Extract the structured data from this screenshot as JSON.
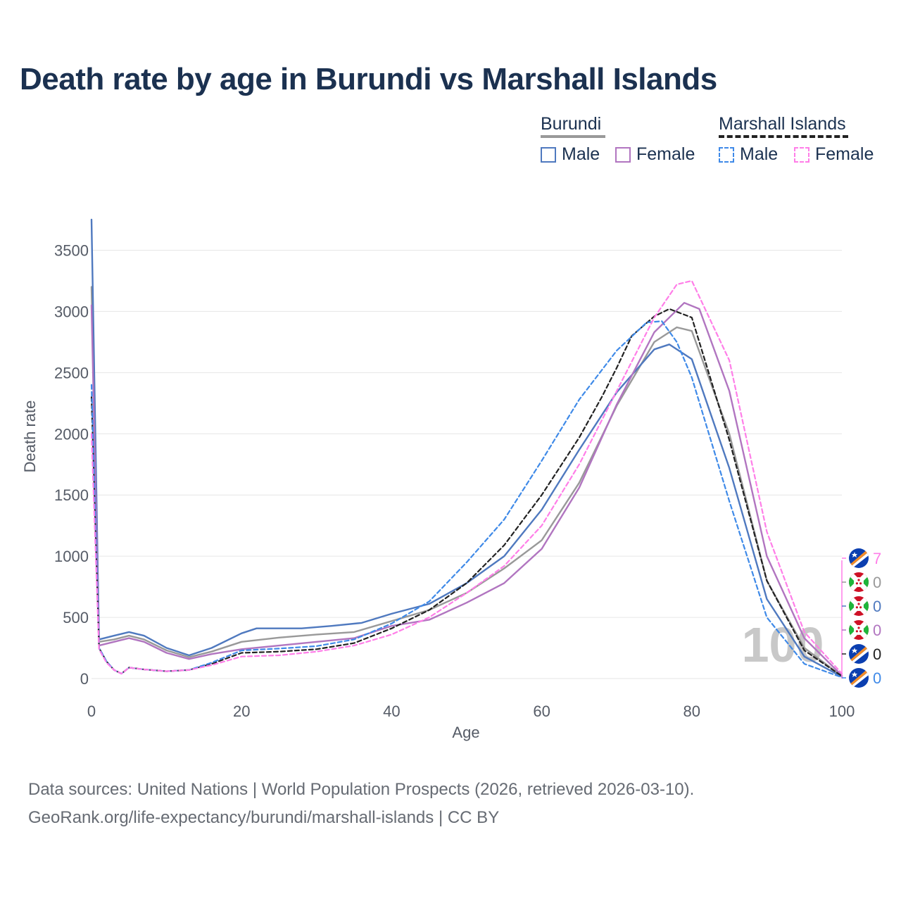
{
  "title": "Death rate by age in Burundi vs Marshall Islands",
  "legend": {
    "groups": [
      {
        "name": "Burundi",
        "line_color": "#999999",
        "dashed": false,
        "items": [
          {
            "label": "Male",
            "color": "#4f79bf"
          },
          {
            "label": "Female",
            "color": "#b175c0"
          }
        ]
      },
      {
        "name": "Marshall Islands",
        "line_color": "#222222",
        "dashed": true,
        "items": [
          {
            "label": "Male",
            "color": "#3f8ae8"
          },
          {
            "label": "Female",
            "color": "#ff7ee8"
          }
        ]
      }
    ]
  },
  "chart_data": {
    "type": "line",
    "title": "Death rate by age in Burundi vs Marshall Islands",
    "xlabel": "Age",
    "ylabel": "Death rate",
    "xlim": [
      0,
      100
    ],
    "ylim": [
      0,
      3750
    ],
    "xticks": [
      0,
      20,
      40,
      60,
      80,
      100
    ],
    "yticks": [
      0,
      500,
      1000,
      1500,
      2000,
      2500,
      3000,
      3500
    ],
    "grid": true,
    "age_marker": "100",
    "series": [
      {
        "name": "Burundi (total)",
        "color": "#999999",
        "dashed": false,
        "end_value": "0",
        "points": [
          [
            0,
            3200
          ],
          [
            1,
            300
          ],
          [
            3,
            320
          ],
          [
            5,
            350
          ],
          [
            7,
            320
          ],
          [
            10,
            230
          ],
          [
            13,
            175
          ],
          [
            16,
            220
          ],
          [
            20,
            300
          ],
          [
            25,
            335
          ],
          [
            30,
            360
          ],
          [
            35,
            380
          ],
          [
            40,
            470
          ],
          [
            45,
            560
          ],
          [
            50,
            700
          ],
          [
            55,
            900
          ],
          [
            60,
            1130
          ],
          [
            65,
            1600
          ],
          [
            70,
            2230
          ],
          [
            75,
            2750
          ],
          [
            78,
            2870
          ],
          [
            80,
            2840
          ],
          [
            85,
            2000
          ],
          [
            90,
            800
          ],
          [
            95,
            250
          ],
          [
            100,
            20
          ]
        ]
      },
      {
        "name": "Burundi Male",
        "color": "#4f79bf",
        "dashed": false,
        "end_value": "0",
        "points": [
          [
            0,
            3750
          ],
          [
            1,
            320
          ],
          [
            3,
            350
          ],
          [
            5,
            380
          ],
          [
            7,
            350
          ],
          [
            10,
            250
          ],
          [
            13,
            190
          ],
          [
            16,
            250
          ],
          [
            20,
            370
          ],
          [
            22,
            410
          ],
          [
            25,
            410
          ],
          [
            28,
            410
          ],
          [
            32,
            430
          ],
          [
            36,
            455
          ],
          [
            40,
            530
          ],
          [
            45,
            610
          ],
          [
            50,
            780
          ],
          [
            55,
            1000
          ],
          [
            60,
            1380
          ],
          [
            65,
            1870
          ],
          [
            70,
            2340
          ],
          [
            75,
            2690
          ],
          [
            77,
            2730
          ],
          [
            80,
            2610
          ],
          [
            85,
            1720
          ],
          [
            90,
            650
          ],
          [
            95,
            180
          ],
          [
            100,
            15
          ]
        ]
      },
      {
        "name": "Burundi Female",
        "color": "#b175c0",
        "dashed": false,
        "end_value": "0",
        "points": [
          [
            0,
            3050
          ],
          [
            1,
            270
          ],
          [
            3,
            300
          ],
          [
            5,
            330
          ],
          [
            7,
            300
          ],
          [
            10,
            210
          ],
          [
            13,
            160
          ],
          [
            16,
            200
          ],
          [
            20,
            240
          ],
          [
            25,
            270
          ],
          [
            30,
            300
          ],
          [
            35,
            330
          ],
          [
            40,
            430
          ],
          [
            45,
            480
          ],
          [
            50,
            620
          ],
          [
            55,
            780
          ],
          [
            60,
            1060
          ],
          [
            65,
            1560
          ],
          [
            70,
            2240
          ],
          [
            75,
            2830
          ],
          [
            79,
            3070
          ],
          [
            81,
            3020
          ],
          [
            85,
            2350
          ],
          [
            90,
            1000
          ],
          [
            95,
            330
          ],
          [
            100,
            25
          ]
        ]
      },
      {
        "name": "Marshall Islands (total)",
        "color": "#222222",
        "dashed": true,
        "end_value": "0",
        "points": [
          [
            0,
            2300
          ],
          [
            1,
            250
          ],
          [
            2,
            140
          ],
          [
            3,
            70
          ],
          [
            4,
            40
          ],
          [
            5,
            90
          ],
          [
            7,
            75
          ],
          [
            10,
            60
          ],
          [
            13,
            70
          ],
          [
            16,
            120
          ],
          [
            20,
            210
          ],
          [
            25,
            220
          ],
          [
            30,
            240
          ],
          [
            35,
            290
          ],
          [
            40,
            410
          ],
          [
            45,
            560
          ],
          [
            50,
            780
          ],
          [
            55,
            1090
          ],
          [
            60,
            1500
          ],
          [
            65,
            1970
          ],
          [
            68,
            2300
          ],
          [
            70,
            2540
          ],
          [
            72,
            2800
          ],
          [
            75,
            2960
          ],
          [
            77,
            3020
          ],
          [
            80,
            2950
          ],
          [
            85,
            1950
          ],
          [
            90,
            800
          ],
          [
            95,
            230
          ],
          [
            100,
            20
          ]
        ]
      },
      {
        "name": "Marshall Islands Male",
        "color": "#3f8ae8",
        "dashed": true,
        "end_value": "0",
        "points": [
          [
            0,
            2400
          ],
          [
            1,
            250
          ],
          [
            2,
            140
          ],
          [
            3,
            70
          ],
          [
            4,
            40
          ],
          [
            5,
            90
          ],
          [
            7,
            75
          ],
          [
            10,
            60
          ],
          [
            13,
            70
          ],
          [
            16,
            130
          ],
          [
            20,
            230
          ],
          [
            25,
            245
          ],
          [
            30,
            265
          ],
          [
            35,
            320
          ],
          [
            40,
            450
          ],
          [
            45,
            630
          ],
          [
            50,
            950
          ],
          [
            55,
            1300
          ],
          [
            60,
            1780
          ],
          [
            65,
            2280
          ],
          [
            70,
            2680
          ],
          [
            74,
            2910
          ],
          [
            76,
            2920
          ],
          [
            78,
            2750
          ],
          [
            80,
            2460
          ],
          [
            85,
            1450
          ],
          [
            90,
            500
          ],
          [
            95,
            120
          ],
          [
            100,
            10
          ]
        ]
      },
      {
        "name": "Marshall Islands Female",
        "color": "#ff7ee8",
        "dashed": true,
        "end_value": "7",
        "points": [
          [
            0,
            2000
          ],
          [
            1,
            240
          ],
          [
            2,
            130
          ],
          [
            3,
            70
          ],
          [
            4,
            40
          ],
          [
            5,
            90
          ],
          [
            7,
            75
          ],
          [
            10,
            60
          ],
          [
            13,
            70
          ],
          [
            16,
            110
          ],
          [
            20,
            180
          ],
          [
            25,
            190
          ],
          [
            30,
            220
          ],
          [
            35,
            270
          ],
          [
            40,
            360
          ],
          [
            45,
            500
          ],
          [
            50,
            700
          ],
          [
            55,
            920
          ],
          [
            60,
            1250
          ],
          [
            65,
            1750
          ],
          [
            70,
            2350
          ],
          [
            75,
            2950
          ],
          [
            78,
            3220
          ],
          [
            80,
            3250
          ],
          [
            85,
            2600
          ],
          [
            90,
            1200
          ],
          [
            95,
            380
          ],
          [
            100,
            40
          ]
        ]
      }
    ]
  },
  "footer": {
    "source": "Data sources: United Nations | World Population Prospects (2026, retrieved 2026-03-10).",
    "url": "GeoRank.org/life-expectancy/burundi/marshall-islands | CC BY"
  }
}
